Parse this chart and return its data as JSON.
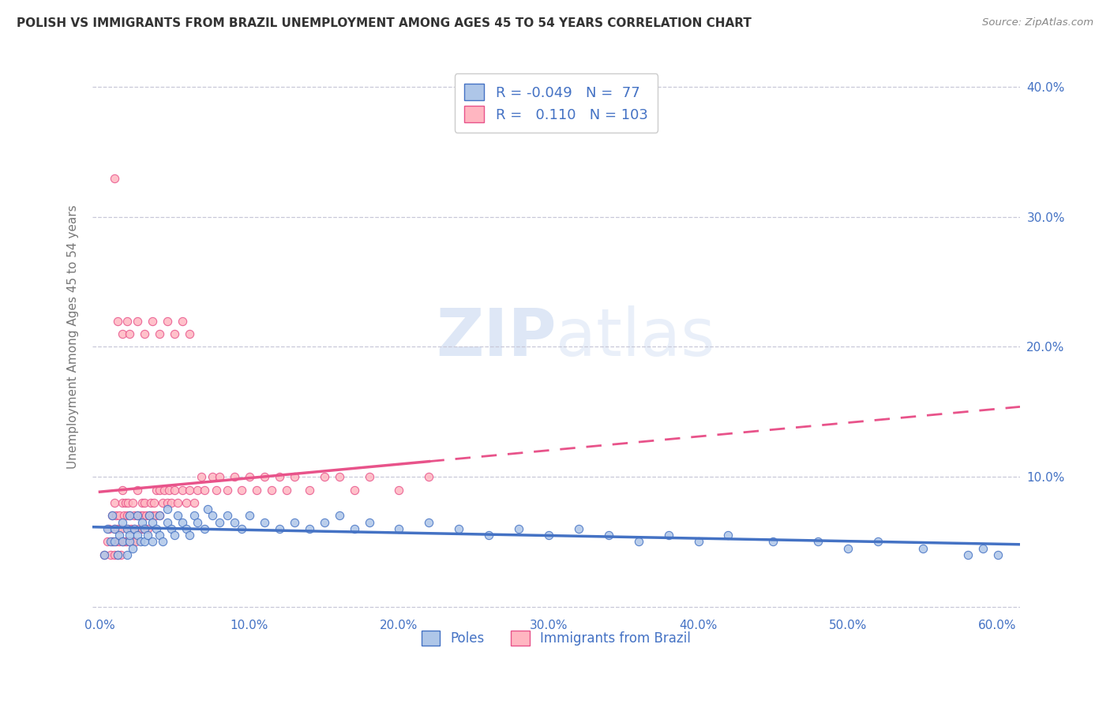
{
  "title": "POLISH VS IMMIGRANTS FROM BRAZIL UNEMPLOYMENT AMONG AGES 45 TO 54 YEARS CORRELATION CHART",
  "source": "Source: ZipAtlas.com",
  "ylabel": "Unemployment Among Ages 45 to 54 years",
  "xlim": [
    -0.005,
    0.615
  ],
  "ylim": [
    -0.005,
    0.42
  ],
  "xticks": [
    0.0,
    0.1,
    0.2,
    0.3,
    0.4,
    0.5,
    0.6
  ],
  "yticks": [
    0.0,
    0.1,
    0.2,
    0.3,
    0.4
  ],
  "title_color": "#333333",
  "axis_color": "#4472C4",
  "poles_fill": "#AEC6E8",
  "poles_edge": "#4472C4",
  "brazil_fill": "#FFB6C1",
  "brazil_edge": "#E8538A",
  "trend_poles_color": "#4472C4",
  "trend_brazil_color": "#E8538A",
  "grid_color": "#C8C8D8",
  "legend_poles_R": "-0.049",
  "legend_poles_N": "77",
  "legend_brazil_R": "0.110",
  "legend_brazil_N": "103",
  "poles_x": [
    0.003,
    0.005,
    0.007,
    0.008,
    0.01,
    0.01,
    0.012,
    0.013,
    0.015,
    0.015,
    0.018,
    0.018,
    0.02,
    0.02,
    0.02,
    0.022,
    0.023,
    0.025,
    0.025,
    0.027,
    0.028,
    0.03,
    0.03,
    0.032,
    0.033,
    0.035,
    0.035,
    0.038,
    0.04,
    0.04,
    0.042,
    0.045,
    0.045,
    0.048,
    0.05,
    0.052,
    0.055,
    0.058,
    0.06,
    0.063,
    0.065,
    0.07,
    0.072,
    0.075,
    0.08,
    0.085,
    0.09,
    0.095,
    0.1,
    0.11,
    0.12,
    0.13,
    0.14,
    0.15,
    0.16,
    0.17,
    0.18,
    0.2,
    0.22,
    0.24,
    0.26,
    0.28,
    0.3,
    0.32,
    0.34,
    0.36,
    0.38,
    0.4,
    0.42,
    0.45,
    0.48,
    0.5,
    0.52,
    0.55,
    0.58,
    0.59,
    0.6
  ],
  "poles_y": [
    0.04,
    0.06,
    0.05,
    0.07,
    0.05,
    0.06,
    0.04,
    0.055,
    0.05,
    0.065,
    0.04,
    0.06,
    0.05,
    0.055,
    0.07,
    0.045,
    0.06,
    0.055,
    0.07,
    0.05,
    0.065,
    0.05,
    0.06,
    0.055,
    0.07,
    0.05,
    0.065,
    0.06,
    0.055,
    0.07,
    0.05,
    0.065,
    0.075,
    0.06,
    0.055,
    0.07,
    0.065,
    0.06,
    0.055,
    0.07,
    0.065,
    0.06,
    0.075,
    0.07,
    0.065,
    0.07,
    0.065,
    0.06,
    0.07,
    0.065,
    0.06,
    0.065,
    0.06,
    0.065,
    0.07,
    0.06,
    0.065,
    0.06,
    0.065,
    0.06,
    0.055,
    0.06,
    0.055,
    0.06,
    0.055,
    0.05,
    0.055,
    0.05,
    0.055,
    0.05,
    0.05,
    0.045,
    0.05,
    0.045,
    0.04,
    0.045,
    0.04
  ],
  "brazil_x": [
    0.003,
    0.005,
    0.006,
    0.007,
    0.008,
    0.008,
    0.009,
    0.01,
    0.01,
    0.01,
    0.011,
    0.011,
    0.012,
    0.012,
    0.013,
    0.013,
    0.014,
    0.014,
    0.015,
    0.015,
    0.015,
    0.016,
    0.016,
    0.017,
    0.017,
    0.018,
    0.018,
    0.019,
    0.019,
    0.02,
    0.02,
    0.021,
    0.022,
    0.022,
    0.023,
    0.023,
    0.024,
    0.025,
    0.025,
    0.026,
    0.027,
    0.028,
    0.028,
    0.029,
    0.03,
    0.03,
    0.031,
    0.032,
    0.033,
    0.034,
    0.035,
    0.036,
    0.037,
    0.038,
    0.04,
    0.04,
    0.042,
    0.043,
    0.045,
    0.046,
    0.048,
    0.05,
    0.052,
    0.055,
    0.058,
    0.06,
    0.063,
    0.065,
    0.068,
    0.07,
    0.075,
    0.078,
    0.08,
    0.085,
    0.09,
    0.095,
    0.1,
    0.105,
    0.11,
    0.115,
    0.12,
    0.125,
    0.13,
    0.14,
    0.15,
    0.16,
    0.17,
    0.18,
    0.2,
    0.22,
    0.01,
    0.012,
    0.015,
    0.018,
    0.02,
    0.025,
    0.03,
    0.035,
    0.04,
    0.045,
    0.05,
    0.055,
    0.06
  ],
  "brazil_y": [
    0.04,
    0.05,
    0.06,
    0.04,
    0.05,
    0.07,
    0.05,
    0.04,
    0.06,
    0.08,
    0.05,
    0.07,
    0.04,
    0.06,
    0.05,
    0.07,
    0.04,
    0.06,
    0.05,
    0.08,
    0.09,
    0.05,
    0.07,
    0.05,
    0.08,
    0.05,
    0.07,
    0.06,
    0.08,
    0.05,
    0.07,
    0.06,
    0.05,
    0.08,
    0.06,
    0.07,
    0.05,
    0.07,
    0.09,
    0.06,
    0.07,
    0.06,
    0.08,
    0.07,
    0.06,
    0.08,
    0.07,
    0.06,
    0.07,
    0.08,
    0.07,
    0.08,
    0.07,
    0.09,
    0.07,
    0.09,
    0.08,
    0.09,
    0.08,
    0.09,
    0.08,
    0.09,
    0.08,
    0.09,
    0.08,
    0.09,
    0.08,
    0.09,
    0.1,
    0.09,
    0.1,
    0.09,
    0.1,
    0.09,
    0.1,
    0.09,
    0.1,
    0.09,
    0.1,
    0.09,
    0.1,
    0.09,
    0.1,
    0.09,
    0.1,
    0.1,
    0.09,
    0.1,
    0.09,
    0.1,
    0.33,
    0.22,
    0.21,
    0.22,
    0.21,
    0.22,
    0.21,
    0.22,
    0.21,
    0.22,
    0.21,
    0.22,
    0.21
  ]
}
